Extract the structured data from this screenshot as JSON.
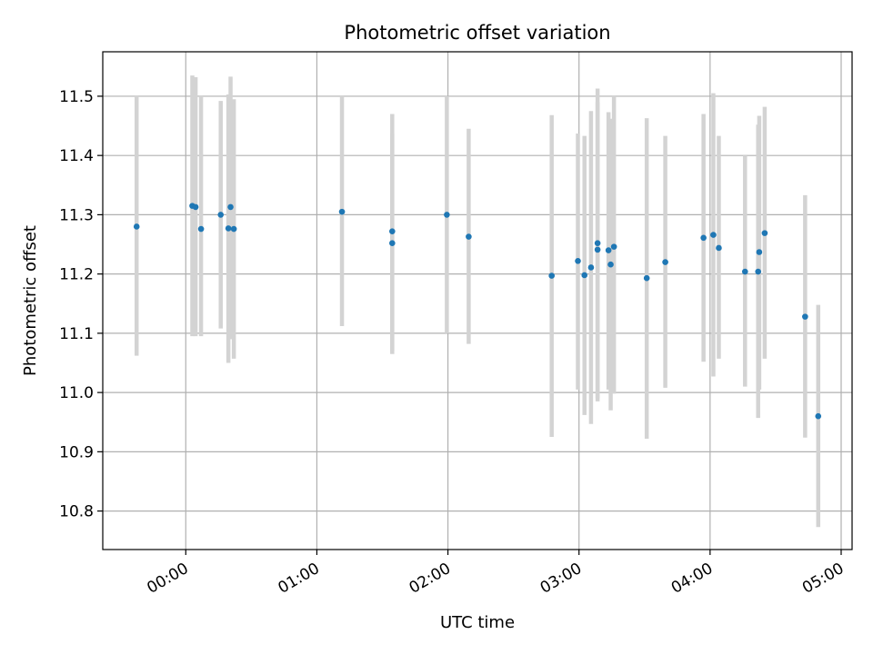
{
  "chart_data": {
    "type": "scatter",
    "title": "Photometric offset variation",
    "xlabel": "UTC time",
    "ylabel": "Photometric offset",
    "grid": true,
    "xlim_minutes": [
      -38,
      305
    ],
    "ylim": [
      10.735,
      11.575
    ],
    "x_ticks": [
      {
        "minutes": 0,
        "label": "00:00"
      },
      {
        "minutes": 60,
        "label": "01:00"
      },
      {
        "minutes": 120,
        "label": "02:00"
      },
      {
        "minutes": 180,
        "label": "03:00"
      },
      {
        "minutes": 240,
        "label": "04:00"
      },
      {
        "minutes": 300,
        "label": "05:00"
      }
    ],
    "y_ticks": [
      {
        "value": 10.8,
        "label": "10.8"
      },
      {
        "value": 10.9,
        "label": "10.9"
      },
      {
        "value": 11.0,
        "label": "11.0"
      },
      {
        "value": 11.1,
        "label": "11.1"
      },
      {
        "value": 11.2,
        "label": "11.2"
      },
      {
        "value": 11.3,
        "label": "11.3"
      },
      {
        "value": 11.4,
        "label": "11.4"
      },
      {
        "value": 11.5,
        "label": "11.5"
      }
    ],
    "series": [
      {
        "name": "offset",
        "marker_color": "#1f77b4",
        "errorbar_color": "#d3d3d3",
        "points": [
          {
            "t": -22.5,
            "y": 11.28,
            "lo": 11.062,
            "hi": 11.5
          },
          {
            "t": 3.0,
            "y": 11.315,
            "lo": 11.095,
            "hi": 11.535
          },
          {
            "t": 4.5,
            "y": 11.313,
            "lo": 11.095,
            "hi": 11.532
          },
          {
            "t": 16.0,
            "y": 11.3,
            "lo": 11.108,
            "hi": 11.492
          },
          {
            "t": 19.5,
            "y": 11.277,
            "lo": 11.05,
            "hi": 11.503
          },
          {
            "t": 20.5,
            "y": 11.313,
            "lo": 11.09,
            "hi": 11.533
          },
          {
            "t": 22.0,
            "y": 11.276,
            "lo": 11.057,
            "hi": 11.495
          },
          {
            "t": 7.0,
            "y": 11.276,
            "lo": 11.095,
            "hi": 11.5
          },
          {
            "t": 71.5,
            "y": 11.305,
            "lo": 11.112,
            "hi": 11.5
          },
          {
            "t": 94.5,
            "y": 11.272,
            "lo": 11.07,
            "hi": 11.47
          },
          {
            "t": 94.5,
            "y": 11.252,
            "lo": 11.065,
            "hi": 11.437
          },
          {
            "t": 119.5,
            "y": 11.3,
            "lo": 11.1,
            "hi": 11.5
          },
          {
            "t": 129.5,
            "y": 11.263,
            "lo": 11.082,
            "hi": 11.445
          },
          {
            "t": 167.5,
            "y": 11.197,
            "lo": 10.925,
            "hi": 11.468
          },
          {
            "t": 179.5,
            "y": 11.222,
            "lo": 11.005,
            "hi": 11.437
          },
          {
            "t": 182.5,
            "y": 11.198,
            "lo": 10.962,
            "hi": 11.433
          },
          {
            "t": 185.5,
            "y": 11.211,
            "lo": 10.947,
            "hi": 11.475
          },
          {
            "t": 188.5,
            "y": 11.252,
            "lo": 10.99,
            "hi": 11.513
          },
          {
            "t": 188.5,
            "y": 11.241,
            "lo": 10.985,
            "hi": 11.49
          },
          {
            "t": 193.5,
            "y": 11.24,
            "lo": 11.005,
            "hi": 11.473
          },
          {
            "t": 194.5,
            "y": 11.216,
            "lo": 10.97,
            "hi": 11.462
          },
          {
            "t": 196.0,
            "y": 11.246,
            "lo": 10.998,
            "hi": 11.5
          },
          {
            "t": 211.0,
            "y": 11.193,
            "lo": 10.922,
            "hi": 11.463
          },
          {
            "t": 219.5,
            "y": 11.22,
            "lo": 11.008,
            "hi": 11.433
          },
          {
            "t": 237.0,
            "y": 11.261,
            "lo": 11.052,
            "hi": 11.47
          },
          {
            "t": 241.5,
            "y": 11.266,
            "lo": 11.027,
            "hi": 11.505
          },
          {
            "t": 244.0,
            "y": 11.244,
            "lo": 11.057,
            "hi": 11.433
          },
          {
            "t": 256.0,
            "y": 11.204,
            "lo": 11.01,
            "hi": 11.4
          },
          {
            "t": 262.0,
            "y": 11.204,
            "lo": 10.957,
            "hi": 11.452
          },
          {
            "t": 262.5,
            "y": 11.237,
            "lo": 11.005,
            "hi": 11.467
          },
          {
            "t": 265.0,
            "y": 11.269,
            "lo": 11.057,
            "hi": 11.482
          },
          {
            "t": 283.5,
            "y": 11.128,
            "lo": 10.924,
            "hi": 11.333
          },
          {
            "t": 289.5,
            "y": 10.96,
            "lo": 10.773,
            "hi": 11.148
          }
        ]
      }
    ]
  }
}
